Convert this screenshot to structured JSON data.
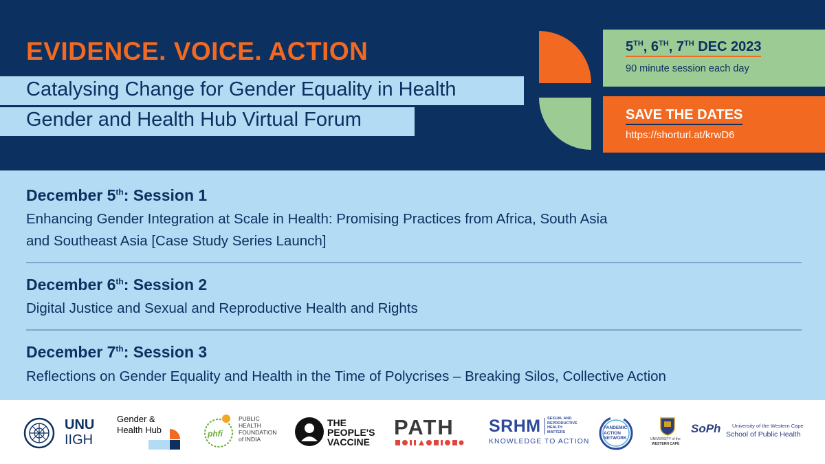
{
  "header": {
    "tagline": "EVIDENCE. VOICE. ACTION",
    "subtitle_1": "Catalysing Change for Gender Equality in Health",
    "subtitle_2": "Gender and Health Hub Virtual Forum"
  },
  "dates": {
    "d1": "5",
    "d2": "6",
    "d3": "7",
    "suffix": "TH",
    "sep": ", ",
    "month_year": " DEC 2023",
    "note": "90 minute session each day"
  },
  "save": {
    "title": "SAVE THE DATES",
    "url": "https://shorturl.at/krwD6"
  },
  "sessions": [
    {
      "date": "December 5",
      "suffix": "th",
      "label": ": Session 1",
      "desc_lines": [
        "Enhancing Gender Integration at Scale in Health: Promising Practices from Africa, South Asia",
        "and Southeast Asia [Case Study Series Launch]"
      ]
    },
    {
      "date": "December 6",
      "suffix": "th",
      "label": ": Session 2",
      "desc_lines": [
        "Digital Justice and Sexual and Reproductive Health and Rights"
      ]
    },
    {
      "date": "December 7",
      "suffix": "th",
      "label": ": Session 3",
      "desc_lines": [
        "Reflections on Gender Equality and Health in the Time of Polycrises – Breaking Silos, Collective Action"
      ]
    }
  ],
  "logos": {
    "unu_1": "UNU",
    "unu_2": "IIGH",
    "hub_1": "Gender &",
    "hub_2": "Health Hub",
    "phfi_mark": "phfi",
    "phfi_1": "PUBLIC",
    "phfi_2": "HEALTH",
    "phfi_3": "FOUNDATION",
    "phfi_4": "of INDIA",
    "pv_1": "THE",
    "pv_2": "PEOPLE'S",
    "pv_3": "VACCINE",
    "path": "PATH",
    "srhm": "SRHM",
    "srhm_small_1": "SEXUAL AND",
    "srhm_small_2": "REPRODUCTIVE",
    "srhm_small_3": "HEALTH",
    "srhm_small_4": "MATTERS",
    "srhm_tag": "KNOWLEDGE TO ACTION",
    "pan_1": "PANDEMIC",
    "pan_2": "ACTION",
    "pan_3": "NETWORK",
    "uwc_1": "UNIVERSITY of the",
    "uwc_2": "WESTERN CAPE",
    "soph_mark": "SoPh",
    "soph_1": "University of the Western Cape",
    "soph_2": "School of Public Health"
  },
  "colors": {
    "navy": "#0c3060",
    "orange": "#f26a21",
    "green": "#9ccb94",
    "light_blue": "#b3dcf4"
  }
}
